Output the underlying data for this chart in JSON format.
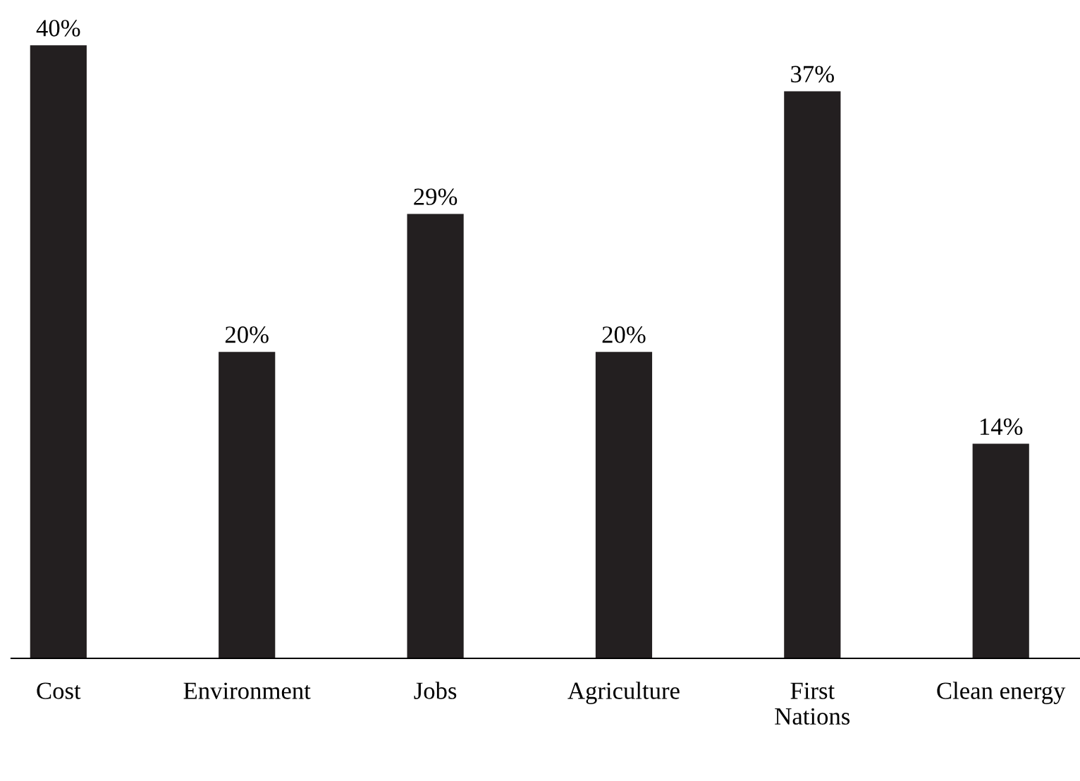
{
  "chart_data": {
    "type": "bar",
    "categories": [
      "Cost",
      "Environment",
      "Jobs",
      "Agriculture",
      "First\nNations",
      "Clean energy"
    ],
    "values": [
      40,
      20,
      29,
      20,
      37,
      14
    ],
    "value_labels": [
      "40%",
      "20%",
      "29%",
      "20%",
      "37%",
      "14%"
    ],
    "color": "#231f20",
    "grid": false,
    "legend": false
  }
}
